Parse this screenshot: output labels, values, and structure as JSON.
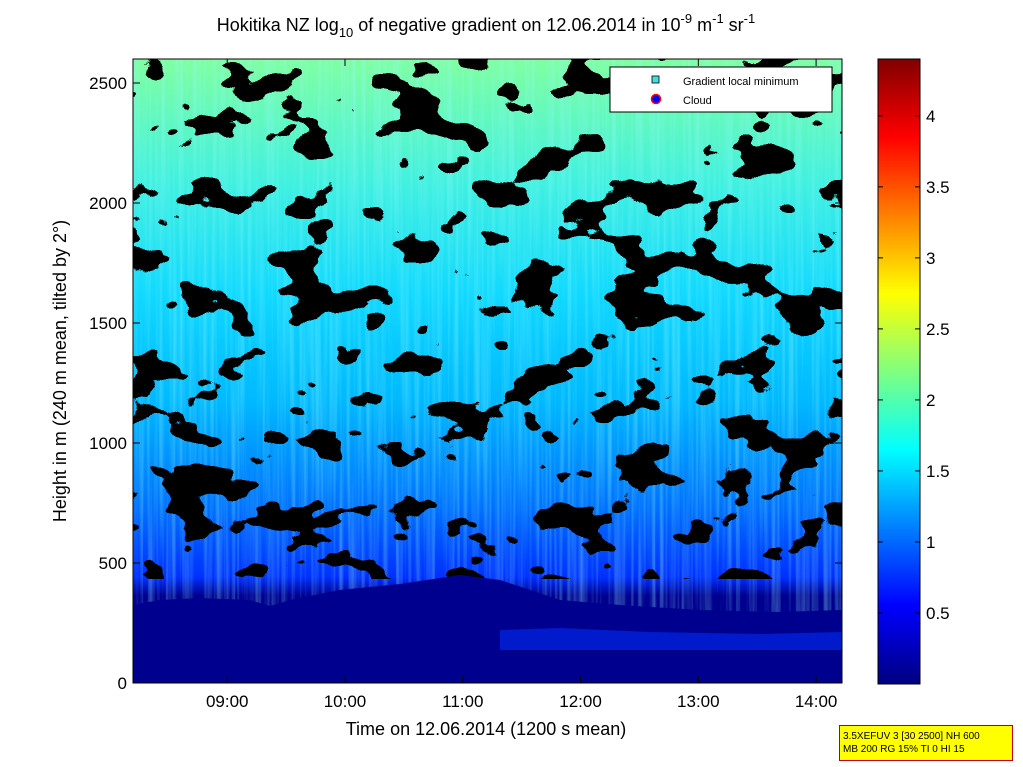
{
  "chart_data": {
    "type": "heatmap",
    "title": {
      "pre": "Hokitika NZ log",
      "sub": "10",
      "mid": " of negative gradient on 12.06.2014 in 10",
      "sup1": "-9",
      "mid2": " m",
      "sup2": "-1",
      "mid3": " sr",
      "sup3": "-1"
    },
    "xlabel": "Time on 12.06.2014 (1200 s mean)",
    "ylabel": "Height in m (240 m mean, tilted by 2°)",
    "x_ticks": [
      "09:00",
      "10:00",
      "11:00",
      "12:00",
      "13:00",
      "14:00"
    ],
    "x_range_hours": [
      8.2,
      14.22
    ],
    "y_ticks": [
      0,
      500,
      1000,
      1500,
      2000,
      2500
    ],
    "y_range": [
      0,
      2600
    ],
    "colorbar": {
      "ticks": [
        "0.5",
        "1",
        "1.5",
        "2",
        "2.5",
        "3",
        "3.5",
        "4"
      ],
      "tick_values": [
        0.5,
        1,
        1.5,
        2,
        2.5,
        3,
        3.5,
        4
      ],
      "range": [
        0,
        4.4
      ],
      "colormap": "jet"
    },
    "legend": {
      "placement": "top-right",
      "items": [
        {
          "label": "Gradient local minimum",
          "marker": "square",
          "color": "#40e0e0"
        },
        {
          "label": "Cloud",
          "marker": "circle",
          "color": "#0000ff",
          "edge": "#ff0000"
        }
      ]
    }
  },
  "info_box": {
    "line1": "3.5XEFUV 3 [30 2500] NH 600",
    "line2": "MB 200 RG 15% TI 0 HI 15"
  }
}
